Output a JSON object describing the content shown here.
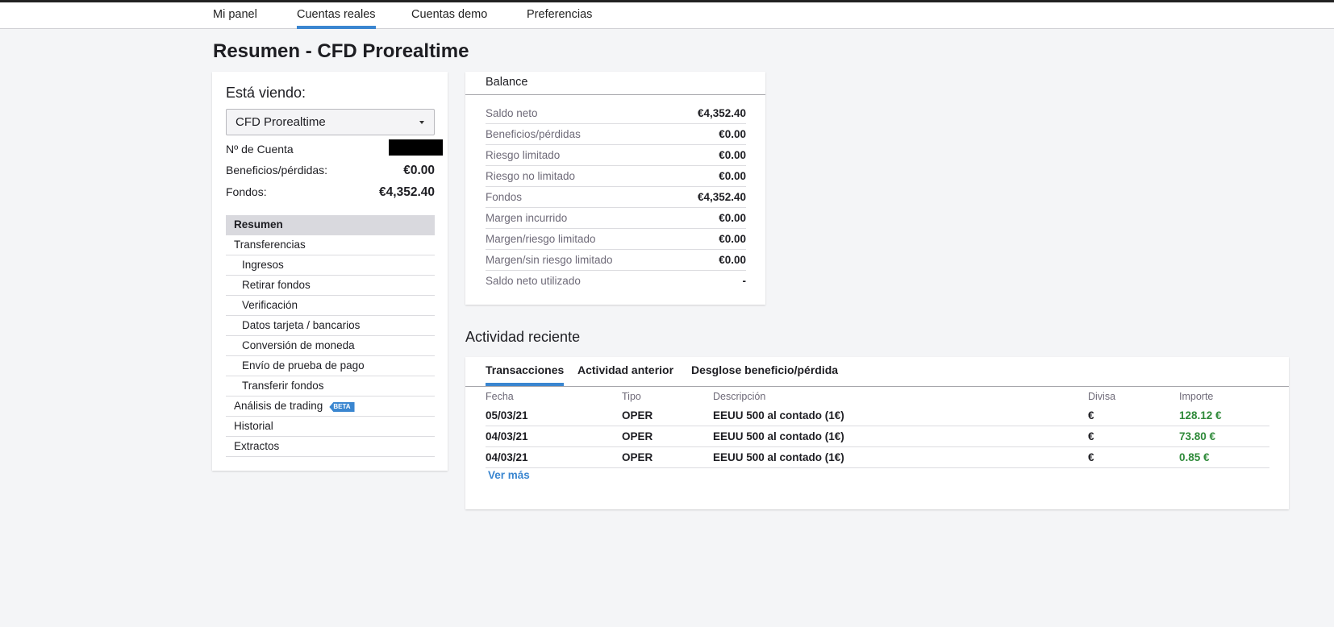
{
  "nav": {
    "items": [
      {
        "label": "Mi panel"
      },
      {
        "label": "Cuentas reales",
        "active": true
      },
      {
        "label": "Cuentas demo"
      },
      {
        "label": "Preferencias"
      }
    ]
  },
  "page_title": "Resumen - CFD Prorealtime",
  "account": {
    "heading": "Está viendo:",
    "selected": "CFD Prorealtime",
    "account_no_label": "Nº de Cuenta",
    "pl_label": "Beneficios/pérdidas:",
    "pl_value": "€0.00",
    "funds_label": "Fondos:",
    "funds_value": "€4,352.40"
  },
  "menu": [
    {
      "label": "Resumen"
    },
    {
      "label": "Transferencias"
    },
    {
      "label": "Ingresos"
    },
    {
      "label": "Retirar fondos"
    },
    {
      "label": "Verificación"
    },
    {
      "label": "Datos tarjeta / bancarios"
    },
    {
      "label": "Conversión de moneda"
    },
    {
      "label": "Envío de prueba de pago"
    },
    {
      "label": "Transferir fondos"
    },
    {
      "label": "Análisis de trading",
      "badge": "BETA"
    },
    {
      "label": "Historial"
    },
    {
      "label": "Extractos"
    }
  ],
  "balance": {
    "title": "Balance",
    "rows": [
      {
        "label": "Saldo neto",
        "value": "€4,352.40"
      },
      {
        "label": "Beneficios/pérdidas",
        "value": "€0.00"
      },
      {
        "label": "Riesgo limitado",
        "value": "€0.00"
      },
      {
        "label": "Riesgo no limitado",
        "value": "€0.00"
      },
      {
        "label": "Fondos",
        "value": "€4,352.40"
      },
      {
        "label": "Margen incurrido",
        "value": "€0.00"
      },
      {
        "label": "Margen/riesgo limitado",
        "value": "€0.00"
      },
      {
        "label": "Margen/sin riesgo limitado",
        "value": "€0.00"
      },
      {
        "label": "Saldo neto utilizado",
        "value": "-"
      }
    ]
  },
  "activity": {
    "title": "Actividad reciente",
    "tabs": [
      {
        "label": "Transacciones"
      },
      {
        "label": "Actividad anterior"
      },
      {
        "label": "Desglose beneficio/pérdida"
      }
    ],
    "columns": [
      "Fecha",
      "Tipo",
      "Descripción",
      "Divisa",
      "Importe"
    ],
    "rows": [
      [
        "05/03/21",
        "OPER",
        "EEUU 500 al contado (1€)",
        "€",
        "128.12 €"
      ],
      [
        "04/03/21",
        "OPER",
        "EEUU 500 al contado (1€)",
        "€",
        "73.80 €"
      ],
      [
        "04/03/21",
        "OPER",
        "EEUU 500 al contado (1€)",
        "€",
        "0.85 €"
      ]
    ],
    "more": "Ver más",
    "amount_color": "#2f8a3a"
  },
  "colors": {
    "accent": "#3a86d0"
  }
}
